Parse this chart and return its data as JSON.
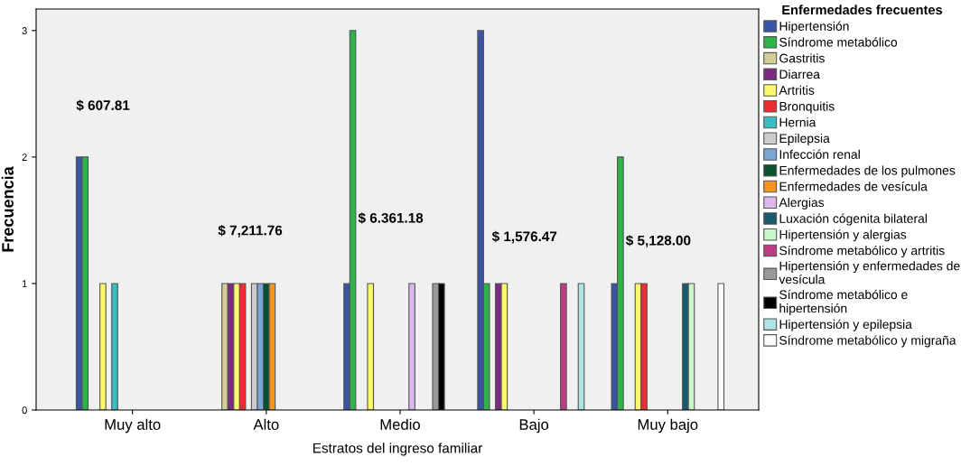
{
  "chart_data": {
    "type": "bar",
    "xlabel": "Estratos del ingreso familiar",
    "ylabel": "Frecuencia",
    "legend_title": "Enfermedades frecuentes",
    "legend": "right",
    "grid": false,
    "categories": [
      "Muy alto",
      "Alto",
      "Medio",
      "Bajo",
      "Muy bajo"
    ],
    "ylim": [
      0,
      3.17
    ],
    "yticks": [
      0,
      1,
      2,
      3
    ],
    "series": [
      {
        "name": "Hipertensión",
        "color": "#3a54a4",
        "values": [
          2,
          null,
          1,
          3,
          1
        ]
      },
      {
        "name": "Síndrome metabólico",
        "color": "#2eb34a",
        "values": [
          2,
          null,
          3,
          1,
          2
        ]
      },
      {
        "name": "Gastritis",
        "color": "#d3ce97",
        "values": [
          null,
          1,
          null,
          null,
          null
        ]
      },
      {
        "name": "Diarrea",
        "color": "#7b2a7f",
        "values": [
          null,
          1,
          null,
          1,
          null
        ]
      },
      {
        "name": "Artritis",
        "color": "#fbf86c",
        "values": [
          1,
          1,
          1,
          1,
          1
        ]
      },
      {
        "name": "Bronquitis",
        "color": "#ee2d33",
        "values": [
          null,
          1,
          null,
          null,
          1
        ]
      },
      {
        "name": "Hernia",
        "color": "#3bbcc0",
        "values": [
          1,
          null,
          null,
          null,
          null
        ]
      },
      {
        "name": "Epilepsia",
        "color": "#cccccc",
        "values": [
          null,
          1,
          null,
          null,
          null
        ]
      },
      {
        "name": "Infección renal",
        "color": "#7aa6d6",
        "values": [
          null,
          1,
          null,
          null,
          null
        ]
      },
      {
        "name": "Enfermedades de los pulmones",
        "color": "#0b5130",
        "values": [
          null,
          1,
          null,
          null,
          null
        ]
      },
      {
        "name": "Enfermedades de vesícula",
        "color": "#f7941d",
        "values": [
          null,
          1,
          null,
          null,
          null
        ]
      },
      {
        "name": "Alergias",
        "color": "#dcb8ec",
        "values": [
          null,
          null,
          1,
          null,
          null
        ]
      },
      {
        "name": "Luxación cógenita bilateral",
        "color": "#1a5a6e",
        "values": [
          null,
          null,
          null,
          null,
          1
        ]
      },
      {
        "name": "Hipertensión y alergias",
        "color": "#c9f7c9",
        "values": [
          null,
          null,
          null,
          null,
          1
        ]
      },
      {
        "name": "Síndrome metabólico y artritis",
        "color": "#bb3c7f",
        "values": [
          null,
          null,
          null,
          1,
          null
        ]
      },
      {
        "name": "Hipertensión y enfermedades de\nvesícula",
        "color": "#999999",
        "values": [
          null,
          null,
          1,
          null,
          null
        ]
      },
      {
        "name": "Síndrome metabólico e\nhipertensión",
        "color": "#000000",
        "values": [
          null,
          null,
          1,
          null,
          null
        ]
      },
      {
        "name": "Hipertensión y epilepsia",
        "color": "#b0e3e3",
        "values": [
          null,
          null,
          null,
          1,
          null
        ]
      },
      {
        "name": "Síndrome metabólico y migraña",
        "color": "#ffffff",
        "values": [
          null,
          null,
          null,
          null,
          1
        ]
      }
    ],
    "annotations": [
      "$ 607.81",
      "$ 7,211.76",
      "$ 6.361.18",
      "$ 1,576.47",
      "$ 5,128.00"
    ]
  }
}
